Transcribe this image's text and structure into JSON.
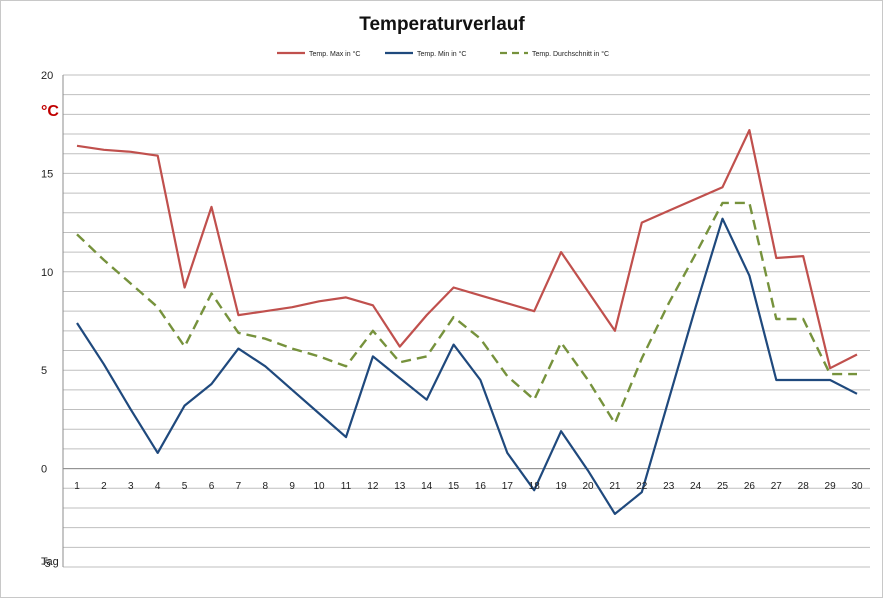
{
  "chart_data": {
    "type": "line",
    "title": "Temperaturverlauf",
    "ylabel": "°C",
    "xlabel": "Tag",
    "ylim": [
      -5,
      20
    ],
    "yticks": [
      0,
      5,
      10,
      15,
      20
    ],
    "ytick_labels": [
      "0",
      "5",
      "10",
      "15",
      "20"
    ],
    "y_min_label": "-5",
    "minor_grid_step": 1,
    "grid": true,
    "legend_position": "top",
    "categories": [
      "1",
      "2",
      "3",
      "4",
      "5",
      "6",
      "7",
      "8",
      "9",
      "10",
      "11",
      "12",
      "13",
      "14",
      "15",
      "16",
      "17",
      "18",
      "19",
      "20",
      "21",
      "22",
      "23",
      "24",
      "25",
      "26",
      "27",
      "28",
      "29",
      "30"
    ],
    "series": [
      {
        "name": "Temp. Max in °C",
        "color": "#c0504d",
        "dash": "solid",
        "values": [
          16.4,
          16.2,
          16.1,
          15.9,
          9.2,
          13.3,
          7.8,
          8.0,
          8.2,
          8.5,
          8.7,
          8.3,
          6.2,
          7.8,
          9.2,
          8.8,
          8.4,
          8.0,
          11.0,
          9.0,
          7.0,
          12.5,
          13.1,
          13.7,
          14.3,
          17.2,
          10.7,
          10.8,
          5.1,
          5.8
        ]
      },
      {
        "name": "Temp. Min in °C",
        "color": "#1f497d",
        "dash": "solid",
        "values": [
          7.4,
          5.3,
          3.0,
          0.8,
          3.2,
          4.3,
          6.1,
          5.2,
          4.0,
          2.8,
          1.6,
          5.7,
          4.6,
          3.5,
          6.3,
          4.5,
          0.8,
          -1.1,
          1.9,
          -0.1,
          -2.3,
          -1.2,
          3.5,
          8.2,
          12.7,
          9.8,
          4.5,
          4.5,
          4.5,
          3.8
        ]
      },
      {
        "name": "Temp. Durchschnitt in °C",
        "color": "#76923c",
        "dash": "dashed",
        "values": [
          11.9,
          10.6,
          9.4,
          8.2,
          6.2,
          8.9,
          6.9,
          6.6,
          6.1,
          5.7,
          5.2,
          7.0,
          5.4,
          5.7,
          7.7,
          6.6,
          4.7,
          3.5,
          6.4,
          4.5,
          2.3,
          5.6,
          8.4,
          10.9,
          13.5,
          13.5,
          7.6,
          7.6,
          4.8,
          4.8
        ]
      }
    ]
  }
}
